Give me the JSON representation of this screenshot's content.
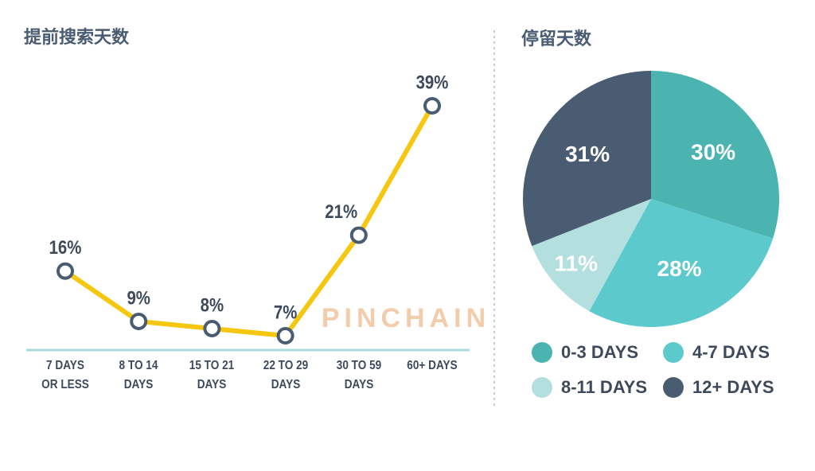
{
  "chart_data": [
    {
      "type": "line",
      "title": "提前搜索天数",
      "categories": [
        "7 DAYS OR LESS",
        "8 TO 14 DAYS",
        "15 TO 21 DAYS",
        "22 TO 29 DAYS",
        "30 TO 59 DAYS",
        "60+ DAYS"
      ],
      "values": [
        16,
        9,
        8,
        7,
        21,
        39
      ],
      "value_labels": [
        "16%",
        "9%",
        "8%",
        "7%",
        "21%",
        "39%"
      ],
      "color": "#f5c710",
      "marker_color": "#4a5c72",
      "baseline_color": "#a9ddd9",
      "watermark": "PINCHAIN"
    },
    {
      "type": "pie",
      "title": "停留天数",
      "categories": [
        "0-3 DAYS",
        "4-7 DAYS",
        "8-11 DAYS",
        "12+ DAYS"
      ],
      "values": [
        30,
        28,
        11,
        31
      ],
      "value_labels": [
        "30%",
        "28%",
        "11%",
        "31%"
      ],
      "colors": [
        "#4bb3b0",
        "#5ccacc",
        "#b3e0df",
        "#4a5c72"
      ]
    }
  ]
}
